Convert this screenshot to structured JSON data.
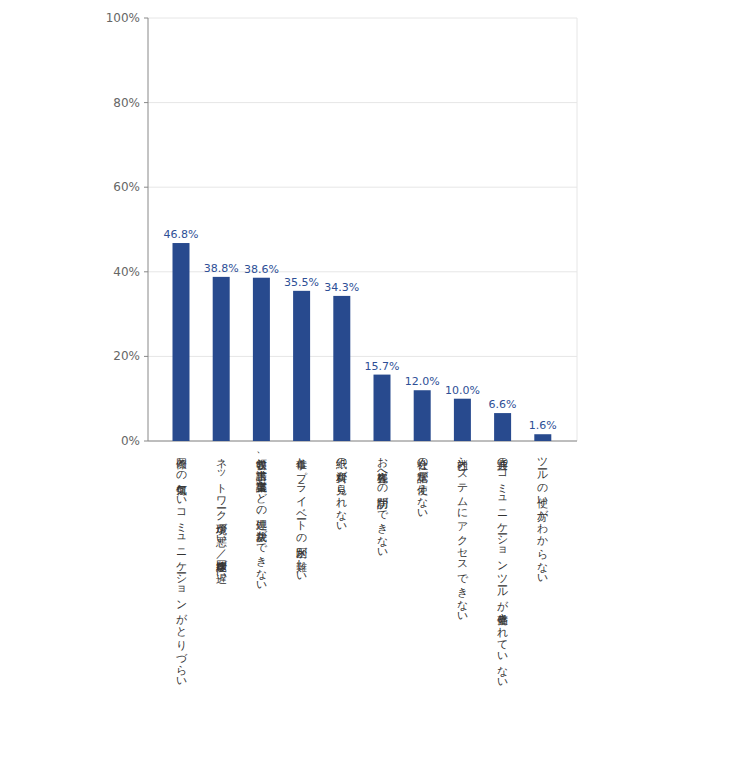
{
  "chart_data": {
    "type": "bar",
    "categories": [
      "同僚との何気ないコミュニケーションがとりづらい",
      "ネットワーク環境が悪い／回線速度が遅い",
      "領収書、請求書、稟議書などの処理、決裁ができない",
      "仕事とプライベートの区別が難しい",
      "紙の資料が見られない",
      "お客様先への訪問ができない",
      "会社の電話が使えない",
      "社内システムにアクセスできない",
      "共通のコミュニケーションツールが整備されていない",
      "ツールの使い方がわからない"
    ],
    "values": [
      46.8,
      38.8,
      38.6,
      35.5,
      34.3,
      15.7,
      12.0,
      10.0,
      6.6,
      1.6
    ],
    "value_labels": [
      "46.8%",
      "38.8%",
      "38.6%",
      "35.5%",
      "34.3%",
      "15.7%",
      "12.0%",
      "10.0%",
      "6.6%",
      "1.6%"
    ],
    "color": "#284a8e",
    "ylim": [
      0,
      100
    ],
    "yticks": [
      {
        "value": 0,
        "label": "0%"
      },
      {
        "value": 20,
        "label": "20%"
      },
      {
        "value": 40,
        "label": "40%"
      },
      {
        "value": 60,
        "label": "60%"
      },
      {
        "value": 80,
        "label": "80%"
      },
      {
        "value": 100,
        "label": "100%"
      }
    ],
    "grid": true,
    "data_labels": true
  }
}
